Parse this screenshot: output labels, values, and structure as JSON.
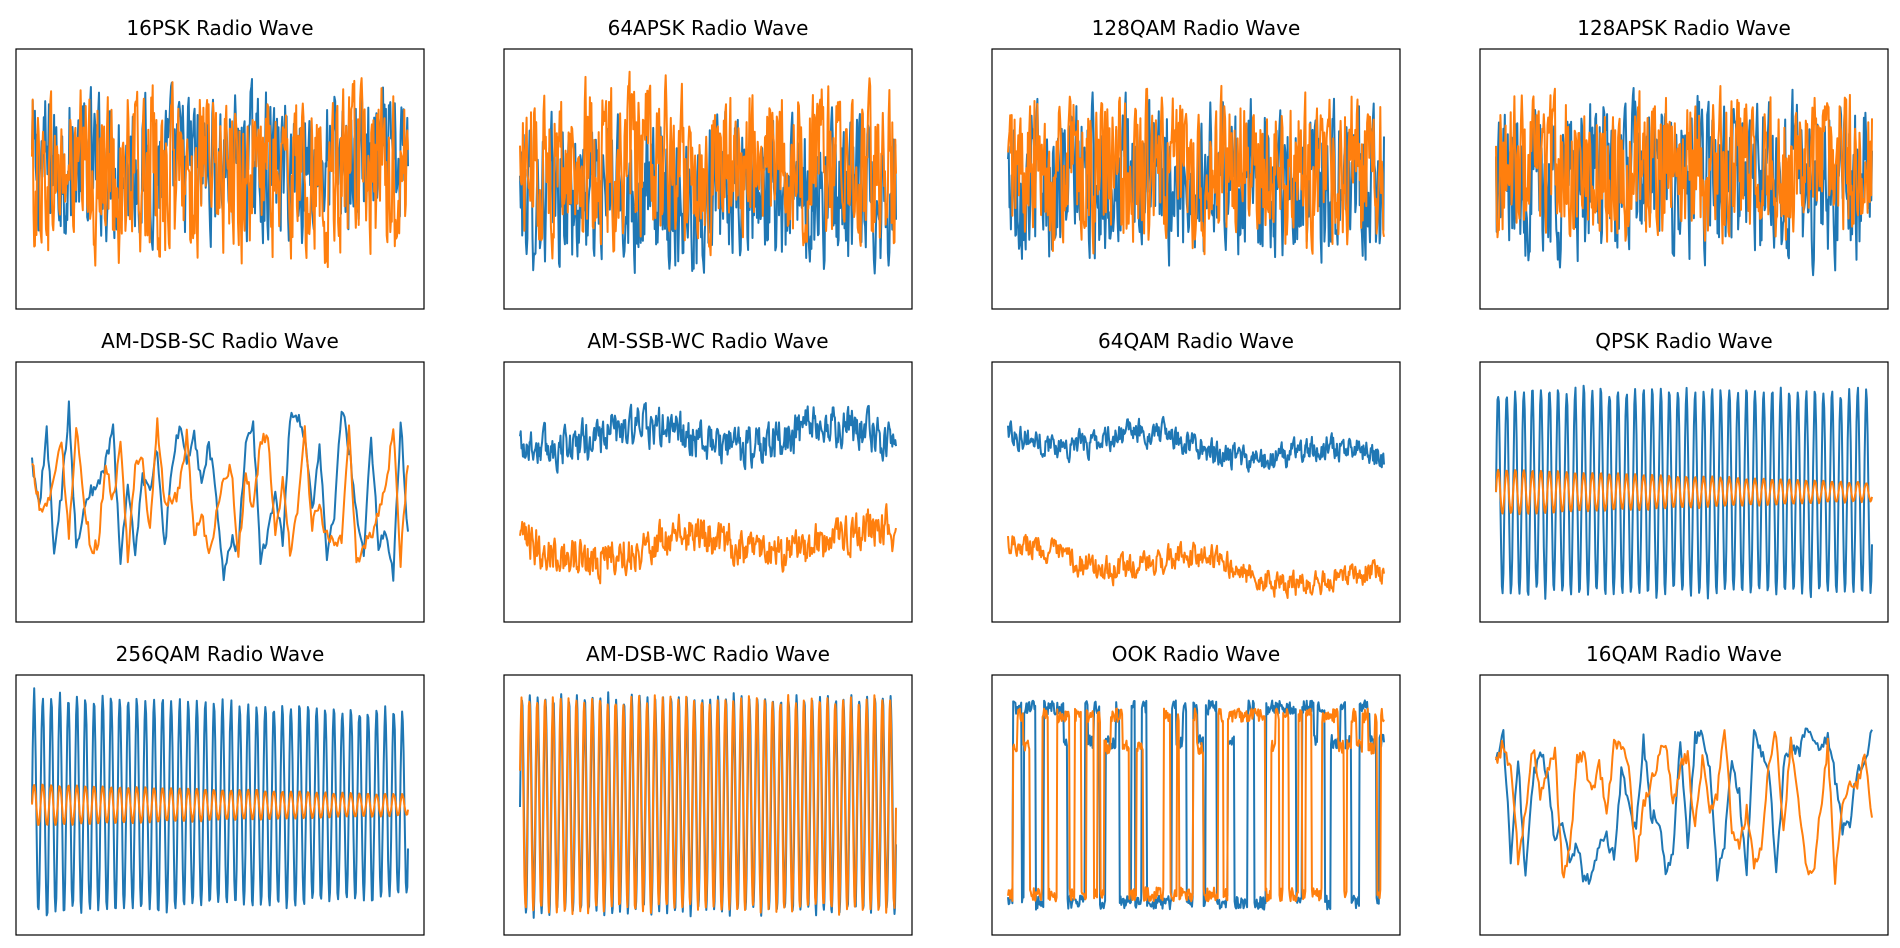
{
  "colors": {
    "i_channel": "#1f77b4",
    "q_channel": "#ff7f0e",
    "frame": "#000000",
    "background": "#ffffff"
  },
  "chart_data": [
    {
      "type": "line",
      "title": "16PSK Radio Wave",
      "pattern": "noise",
      "samples": 512,
      "ylim": [
        -3.2,
        3.2
      ],
      "series": [
        {
          "color": "#1f77b4",
          "center": 0.35,
          "amplitude": 1.45
        },
        {
          "color": "#ff7f0e",
          "center": 0.1,
          "amplitude": 1.7
        }
      ],
      "grid": false
    },
    {
      "type": "line",
      "title": "64APSK Radio Wave",
      "pattern": "noise",
      "samples": 512,
      "ylim": [
        -3.2,
        3.2
      ],
      "series": [
        {
          "color": "#1f77b4",
          "center": -0.35,
          "amplitude": 1.5
        },
        {
          "color": "#ff7f0e",
          "center": 0.35,
          "amplitude": 1.6
        }
      ],
      "grid": false
    },
    {
      "type": "line",
      "title": "128QAM Radio Wave",
      "pattern": "noise",
      "samples": 512,
      "ylim": [
        -3.2,
        3.2
      ],
      "series": [
        {
          "color": "#1f77b4",
          "center": 0.0,
          "amplitude": 1.55
        },
        {
          "color": "#ff7f0e",
          "center": 0.15,
          "amplitude": 1.55
        }
      ],
      "grid": false
    },
    {
      "type": "line",
      "title": "128APSK Radio Wave",
      "pattern": "noise",
      "samples": 512,
      "ylim": [
        -3.2,
        3.2
      ],
      "series": [
        {
          "color": "#1f77b4",
          "center": 0.0,
          "amplitude": 1.6
        },
        {
          "color": "#ff7f0e",
          "center": 0.3,
          "amplitude": 1.45
        }
      ],
      "grid": false
    },
    {
      "type": "line",
      "title": "AM-DSB-SC Radio Wave",
      "pattern": "smooth",
      "samples": 256,
      "ylim": [
        -3.2,
        3.2
      ],
      "series": [
        {
          "color": "#1f77b4",
          "center": 0.0,
          "amplitude": 1.6
        },
        {
          "color": "#ff7f0e",
          "center": 0.05,
          "amplitude": 1.45
        }
      ],
      "grid": false
    },
    {
      "type": "line",
      "title": "AM-SSB-WC Radio Wave",
      "pattern": "offset",
      "samples": 512,
      "ylim": [
        -3.2,
        3.2
      ],
      "series": [
        {
          "color": "#1f77b4",
          "center": 1.35,
          "amplitude": 0.55,
          "trend": 0.0
        },
        {
          "color": "#ff7f0e",
          "center": -1.45,
          "amplitude": 0.55,
          "trend": 0.3
        }
      ],
      "grid": false
    },
    {
      "type": "line",
      "title": "64QAM Radio Wave",
      "pattern": "offset",
      "samples": 512,
      "ylim": [
        -3.2,
        3.2
      ],
      "series": [
        {
          "color": "#1f77b4",
          "center": 1.5,
          "amplitude": 0.35,
          "trend": -0.75
        },
        {
          "color": "#ff7f0e",
          "center": -1.45,
          "amplitude": 0.35,
          "trend": -0.8
        }
      ],
      "grid": false
    },
    {
      "type": "line",
      "title": "QPSK Radio Wave",
      "pattern": "sine",
      "samples": 512,
      "ylim": [
        -3.2,
        3.2
      ],
      "series": [
        {
          "color": "#1f77b4",
          "center": 0.0,
          "amplitude": 2.5,
          "cycles": 44,
          "decay": 0.0
        },
        {
          "color": "#ff7f0e",
          "center": 0.0,
          "amplitude": 0.55,
          "cycles": 44,
          "decay": 0.6
        }
      ],
      "grid": false
    },
    {
      "type": "line",
      "title": "256QAM Radio Wave",
      "pattern": "sine",
      "samples": 512,
      "ylim": [
        -3.2,
        3.2
      ],
      "series": [
        {
          "color": "#1f77b4",
          "center": 0.0,
          "amplitude": 2.7,
          "cycles": 44,
          "decay": 0.15
        },
        {
          "color": "#ff7f0e",
          "center": 0.0,
          "amplitude": 0.5,
          "cycles": 44,
          "decay": 0.5
        }
      ],
      "grid": false
    },
    {
      "type": "line",
      "title": "AM-DSB-WC Radio Wave",
      "pattern": "sine",
      "samples": 768,
      "ylim": [
        -3.2,
        3.2
      ],
      "series": [
        {
          "color": "#1f77b4",
          "center": 0.0,
          "amplitude": 2.6,
          "cycles": 48,
          "decay": 0.0
        },
        {
          "color": "#ff7f0e",
          "center": 0.0,
          "amplitude": 2.55,
          "cycles": 48,
          "decay": 0.0,
          "phase": 0.35
        }
      ],
      "grid": false
    },
    {
      "type": "line",
      "title": "OOK Radio Wave",
      "pattern": "square",
      "samples": 512,
      "ylim": [
        -3.2,
        3.2
      ],
      "series": [
        {
          "color": "#1f77b4",
          "center": 0.0,
          "amplitude": 2.4
        },
        {
          "color": "#ff7f0e",
          "center": 0.0,
          "amplitude": 2.2
        }
      ],
      "grid": false
    },
    {
      "type": "line",
      "title": "16QAM Radio Wave",
      "pattern": "smooth",
      "samples": 256,
      "ylim": [
        -3.2,
        3.2
      ],
      "series": [
        {
          "color": "#1f77b4",
          "center": 0.0,
          "amplitude": 1.65
        },
        {
          "color": "#ff7f0e",
          "center": 0.0,
          "amplitude": 1.45
        }
      ],
      "grid": false
    }
  ]
}
